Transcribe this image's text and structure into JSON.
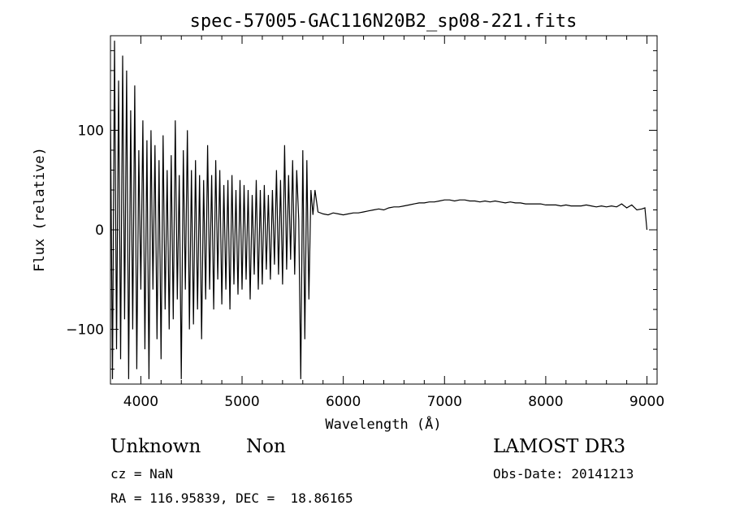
{
  "chart_data": {
    "type": "line",
    "title": "spec-57005-GAC116N20B2_sp08-221.fits",
    "xlabel": "Wavelength (Å)",
    "ylabel": "Flux (relative)",
    "xlim": [
      3700,
      9100
    ],
    "ylim": [
      -155,
      195
    ],
    "xticks": [
      4000,
      5000,
      6000,
      7000,
      8000,
      9000
    ],
    "yticks": [
      -100,
      0,
      100
    ],
    "grid": false,
    "series": [
      {
        "x": [
          3700,
          3720,
          3740,
          3760,
          3780,
          3800,
          3820,
          3840,
          3860,
          3880,
          3900,
          3920,
          3940,
          3960,
          3980,
          4000,
          4020,
          4040,
          4060,
          4080,
          4100,
          4120,
          4140,
          4160,
          4180,
          4200,
          4220,
          4240,
          4260,
          4280,
          4300,
          4320,
          4340,
          4360,
          4380,
          4400,
          4420,
          4440,
          4460,
          4480,
          4500,
          4520,
          4540,
          4560,
          4580,
          4600,
          4620,
          4640,
          4660,
          4680,
          4700,
          4720,
          4740,
          4760,
          4780,
          4800,
          4820,
          4840,
          4860,
          4880,
          4900,
          4920,
          4940,
          4960,
          4980,
          5000,
          5020,
          5040,
          5060,
          5080,
          5100,
          5120,
          5140,
          5160,
          5180,
          5200,
          5220,
          5240,
          5260,
          5280,
          5300,
          5320,
          5340,
          5360,
          5380,
          5400,
          5420,
          5440,
          5460,
          5480,
          5500,
          5520,
          5540,
          5560,
          5580,
          5600,
          5620,
          5640,
          5660,
          5680,
          5700,
          5720,
          5750,
          5800,
          5850,
          5900,
          5950,
          6000,
          6050,
          6100,
          6150,
          6200,
          6250,
          6300,
          6350,
          6400,
          6450,
          6500,
          6550,
          6600,
          6650,
          6700,
          6750,
          6800,
          6850,
          6900,
          6950,
          7000,
          7050,
          7100,
          7150,
          7200,
          7250,
          7300,
          7350,
          7400,
          7450,
          7500,
          7550,
          7600,
          7650,
          7700,
          7750,
          7800,
          7850,
          7900,
          7950,
          8000,
          8050,
          8100,
          8150,
          8200,
          8250,
          8300,
          8350,
          8400,
          8450,
          8500,
          8550,
          8600,
          8650,
          8700,
          8750,
          8800,
          8850,
          8900,
          8950,
          8980,
          9000
        ],
        "y": [
          120,
          -150,
          190,
          -120,
          150,
          -130,
          175,
          -90,
          160,
          -150,
          120,
          -100,
          145,
          -140,
          80,
          -60,
          110,
          -120,
          90,
          -150,
          100,
          -60,
          85,
          -110,
          70,
          -130,
          95,
          -80,
          60,
          -100,
          75,
          -90,
          110,
          -70,
          55,
          -150,
          80,
          -60,
          100,
          -100,
          60,
          -95,
          70,
          -80,
          55,
          -110,
          50,
          -70,
          85,
          -60,
          55,
          -80,
          70,
          -50,
          60,
          -75,
          45,
          -60,
          50,
          -80,
          55,
          -55,
          40,
          -65,
          50,
          -60,
          45,
          -50,
          40,
          -70,
          35,
          -45,
          50,
          -60,
          40,
          -55,
          45,
          -40,
          35,
          -50,
          40,
          -35,
          60,
          -45,
          50,
          -55,
          85,
          -40,
          55,
          -30,
          70,
          -45,
          60,
          10,
          -150,
          80,
          -110,
          70,
          -70,
          40,
          15,
          40,
          18,
          16,
          15,
          17,
          16,
          15,
          16,
          17,
          17,
          18,
          19,
          20,
          21,
          20,
          22,
          23,
          23,
          24,
          25,
          26,
          27,
          27,
          28,
          28,
          29,
          30,
          30,
          29,
          30,
          30,
          29,
          29,
          28,
          29,
          28,
          29,
          28,
          27,
          28,
          27,
          27,
          26,
          26,
          26,
          26,
          25,
          25,
          25,
          24,
          25,
          24,
          24,
          24,
          25,
          24,
          23,
          24,
          23,
          24,
          23,
          26,
          22,
          25,
          20,
          21,
          22,
          0
        ]
      }
    ]
  },
  "footer": {
    "object_class": "Unknown",
    "object_subclass": "Non",
    "survey": "LAMOST DR3",
    "cz": "cz = NaN",
    "obs_date": "Obs-Date: 20141213",
    "coords": "RA = 116.95839, DEC =  18.86165"
  }
}
